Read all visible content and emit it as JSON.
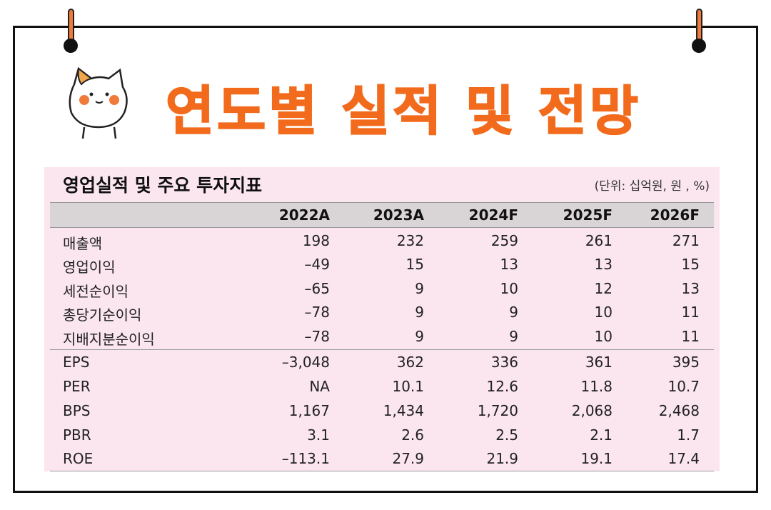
{
  "title": "연도별 실적 및 전망",
  "table": {
    "title": "영업실적 및 주요 투자지표",
    "unit": "(단위: 십억원, 원 , %)",
    "columns": [
      "2022A",
      "2023A",
      "2024F",
      "2025F",
      "2026F"
    ],
    "rows": [
      {
        "label": "매출액",
        "values": [
          "198",
          "232",
          "259",
          "261",
          "271"
        ]
      },
      {
        "label": "영업이익",
        "values": [
          "–49",
          "15",
          "13",
          "13",
          "15"
        ]
      },
      {
        "label": "세전순이익",
        "values": [
          "–65",
          "9",
          "10",
          "12",
          "13"
        ]
      },
      {
        "label": "총당기순이익",
        "values": [
          "–78",
          "9",
          "9",
          "10",
          "11"
        ]
      },
      {
        "label": "지배지분순이익",
        "values": [
          "–78",
          "9",
          "9",
          "10",
          "11"
        ]
      },
      {
        "label": "EPS",
        "values": [
          "–3,048",
          "362",
          "336",
          "361",
          "395"
        ]
      },
      {
        "label": "PER",
        "values": [
          "NA",
          "10.1",
          "12.6",
          "11.8",
          "10.7"
        ]
      },
      {
        "label": "BPS",
        "values": [
          "1,167",
          "1,434",
          "1,720",
          "2,068",
          "2,468"
        ]
      },
      {
        "label": "PBR",
        "values": [
          "3.1",
          "2.6",
          "2.5",
          "2.1",
          "1.7"
        ]
      },
      {
        "label": "ROE",
        "values": [
          "–113.1",
          "27.9",
          "21.9",
          "19.1",
          "17.4"
        ]
      }
    ]
  },
  "colors": {
    "accent": "#f26b1d",
    "panel": "#fbe6f0",
    "header": "#d9d4d6"
  },
  "icons": {
    "mascot": "cat-mascot-icon",
    "pin": "pushpin-icon"
  }
}
